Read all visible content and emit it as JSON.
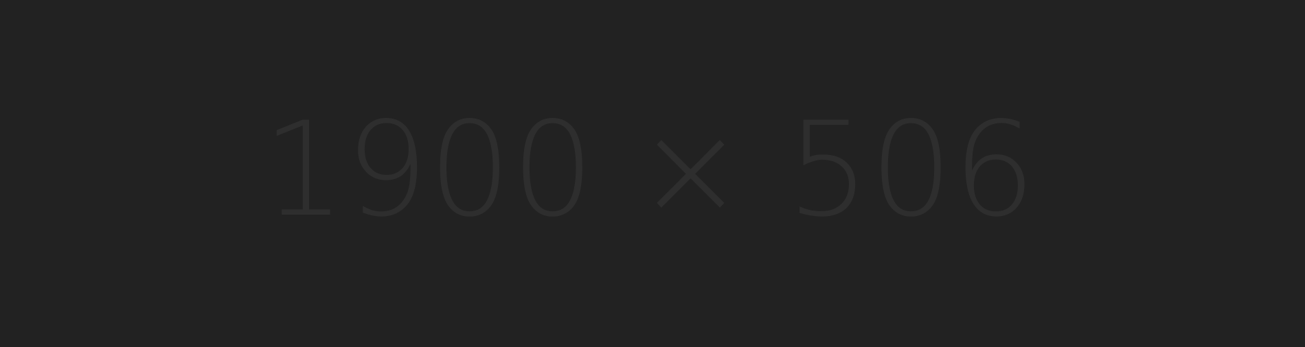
{
  "placeholder": {
    "label": "1900 × 506",
    "background_color": "#222222",
    "text_color": "#2e2e2e"
  }
}
